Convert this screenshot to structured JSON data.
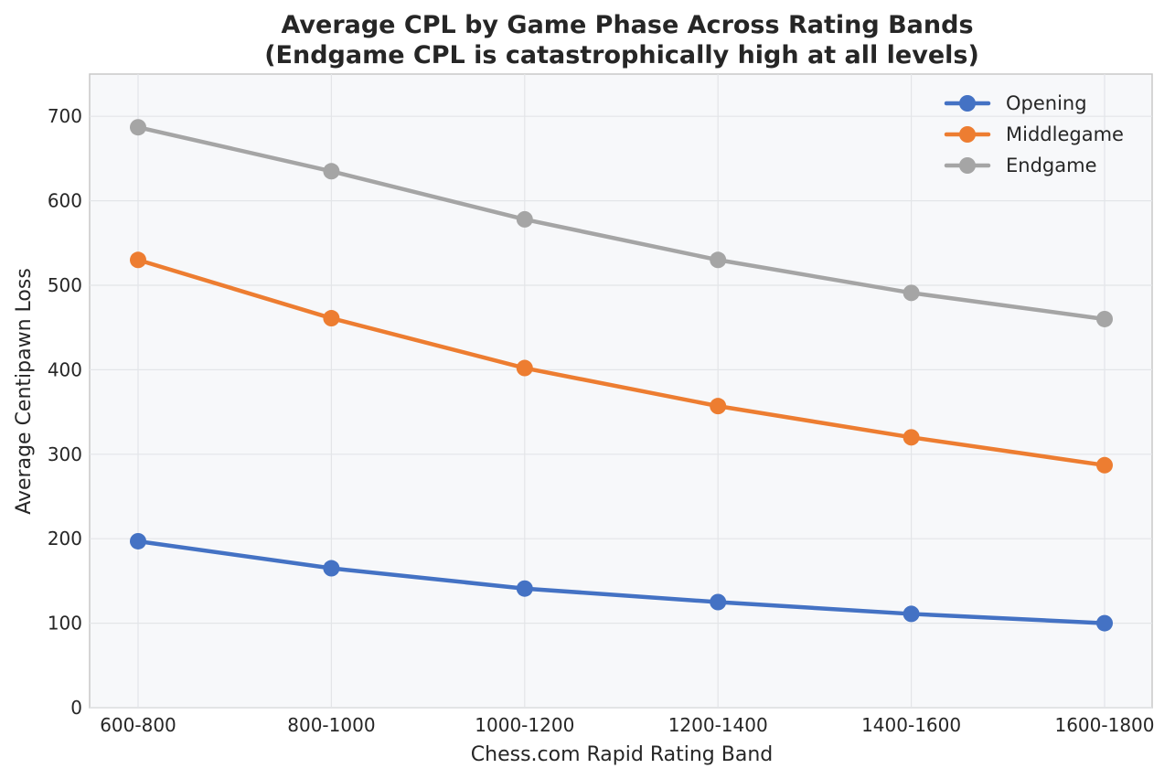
{
  "chart_data": {
    "type": "line",
    "title": "Average CPL by Game Phase Across Rating Bands",
    "subtitle": "(Endgame CPL is catastrophically high at all levels)",
    "xlabel": "Chess.com Rapid Rating Band",
    "ylabel": "Average Centipawn Loss",
    "categories": [
      "600-800",
      "800-1000",
      "1000-1200",
      "1200-1400",
      "1400-1600",
      "1600-1800"
    ],
    "ylim": [
      0,
      750
    ],
    "yticks": [
      0,
      100,
      200,
      300,
      400,
      500,
      600,
      700
    ],
    "grid": true,
    "legend_position": "top-right",
    "series": [
      {
        "name": "Opening",
        "color": "#4472c4",
        "values": [
          197,
          165,
          141,
          125,
          111,
          100
        ]
      },
      {
        "name": "Middlegame",
        "color": "#ed7d31",
        "values": [
          530,
          461,
          402,
          357,
          320,
          287
        ]
      },
      {
        "name": "Endgame",
        "color": "#a5a5a5",
        "values": [
          687,
          635,
          578,
          530,
          491,
          460
        ]
      }
    ]
  }
}
